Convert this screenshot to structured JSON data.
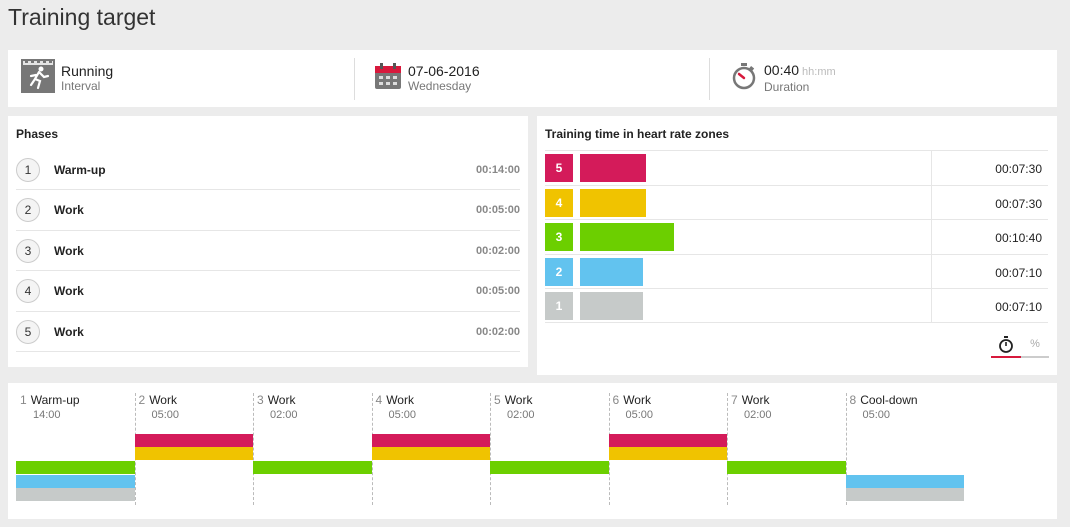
{
  "page": {
    "title": "Training target"
  },
  "summary": {
    "sport": "Running",
    "type": "Interval",
    "date": "07-06-2016",
    "weekday": "Wednesday",
    "duration": "00:40",
    "duration_unit": "hh:mm",
    "duration_label": "Duration"
  },
  "phases": {
    "title": "Phases",
    "items": [
      {
        "num": "1",
        "name": "Warm-up",
        "time": "00:14:00"
      },
      {
        "num": "2",
        "name": "Work",
        "time": "00:05:00"
      },
      {
        "num": "3",
        "name": "Work",
        "time": "00:02:00"
      },
      {
        "num": "4",
        "name": "Work",
        "time": "00:05:00"
      },
      {
        "num": "5",
        "name": "Work",
        "time": "00:02:00"
      }
    ]
  },
  "zones": {
    "title": "Training time in heart rate zones",
    "items": [
      {
        "zone": "5",
        "time": "00:07:30",
        "color": "#d41b5a",
        "badge_color": "#d41b5a"
      },
      {
        "zone": "4",
        "time": "00:07:30",
        "color": "#f0c300",
        "badge_color": "#f0c300"
      },
      {
        "zone": "3",
        "time": "00:10:40",
        "color": "#6ccf00",
        "badge_color": "#6ccf00"
      },
      {
        "zone": "2",
        "time": "00:07:10",
        "color": "#62c3ef",
        "badge_color": "#62c3ef"
      },
      {
        "zone": "1",
        "time": "00:07:10",
        "color": "#c6cac9",
        "badge_color": "#c6cac9"
      }
    ],
    "toggle": {
      "percent_label": "%",
      "active": "time"
    }
  },
  "timeline": {
    "segments": [
      {
        "num": "1",
        "name": "Warm-up",
        "time": "14:00",
        "zones": [
          "3",
          "2",
          "1"
        ]
      },
      {
        "num": "2",
        "name": "Work",
        "time": "05:00",
        "zones": [
          "5",
          "4"
        ]
      },
      {
        "num": "3",
        "name": "Work",
        "time": "02:00",
        "zones": [
          "3"
        ]
      },
      {
        "num": "4",
        "name": "Work",
        "time": "05:00",
        "zones": [
          "5",
          "4"
        ]
      },
      {
        "num": "5",
        "name": "Work",
        "time": "02:00",
        "zones": [
          "3"
        ]
      },
      {
        "num": "6",
        "name": "Work",
        "time": "05:00",
        "zones": [
          "5",
          "4"
        ]
      },
      {
        "num": "7",
        "name": "Work",
        "time": "02:00",
        "zones": [
          "3"
        ]
      },
      {
        "num": "8",
        "name": "Cool-down",
        "time": "05:00",
        "zones": [
          "2",
          "1"
        ]
      }
    ]
  }
}
